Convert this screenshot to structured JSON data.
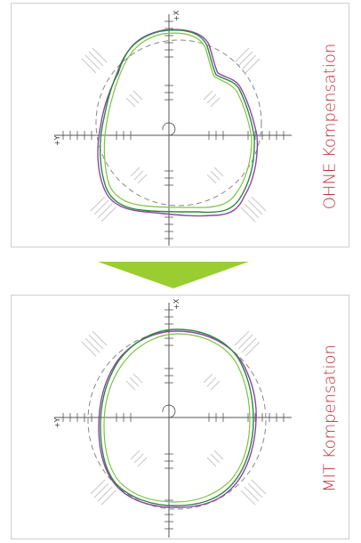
{
  "panels": [
    {
      "label": "OHNE Kompensation",
      "axis_x_label": "+X",
      "axis_y_label": "+Y"
    },
    {
      "label": "MIT Kompensation",
      "axis_x_label": "+X",
      "axis_y_label": "+Y"
    }
  ],
  "colors": {
    "label_red": "#c0313c",
    "arrow_green": "#9acd32",
    "trace_green": "#2e8b3a",
    "trace_purple": "#8e44ad",
    "trace_light_green": "#7fc241",
    "reference_circle": "#888888"
  }
}
